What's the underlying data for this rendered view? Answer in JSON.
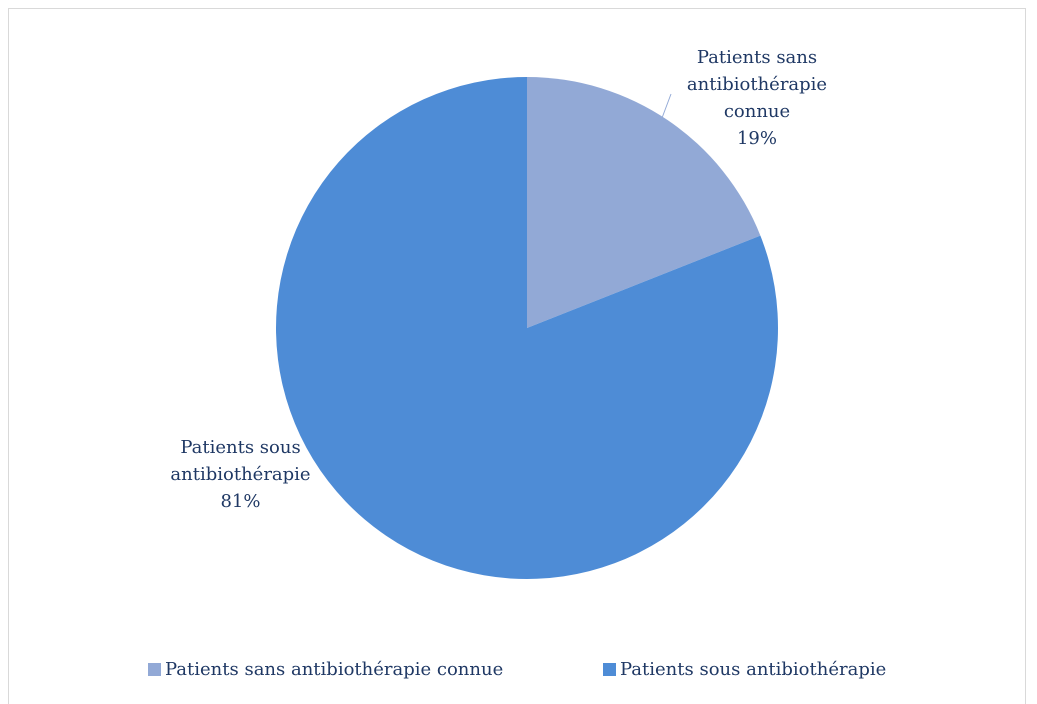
{
  "chart_data": {
    "type": "pie",
    "categories": [
      "Patients sans antibiothérapie connue",
      "Patients sous antibiothérapie"
    ],
    "values": [
      19,
      81
    ],
    "value_labels": [
      "19%",
      "81%"
    ],
    "colors": [
      "#92a9d6",
      "#4e8cd6"
    ],
    "legend": "bottom"
  }
}
